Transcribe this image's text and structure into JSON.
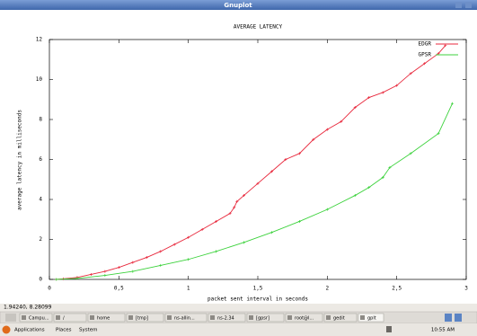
{
  "window": {
    "title": "Gnuplot"
  },
  "status": "1.94240, 8.28099",
  "chart_data": {
    "type": "line",
    "title": "AVERAGE LATENCY",
    "x_label": "packet sent interval in seconds",
    "y_label": "average latency in milliseconds",
    "xlim": [
      0,
      3
    ],
    "ylim": [
      0,
      12
    ],
    "xticks": [
      0,
      {
        "value": 0.5,
        "label": "0,5"
      },
      1,
      {
        "value": 1.5,
        "label": "1,5"
      },
      2,
      {
        "value": 2.5,
        "label": "2,5"
      },
      3
    ],
    "yticks": [
      0,
      2,
      4,
      6,
      8,
      10,
      12
    ],
    "legend": "top-right",
    "series": [
      {
        "name": "EDGR",
        "color": "#e8283c",
        "x": [
          0.05,
          0.1,
          0.2,
          0.3,
          0.4,
          0.5,
          0.6,
          0.7,
          0.8,
          0.9,
          1.0,
          1.1,
          1.2,
          1.3,
          1.33,
          1.35,
          1.4,
          1.5,
          1.6,
          1.7,
          1.8,
          1.9,
          2.0,
          2.1,
          2.2,
          2.3,
          2.4,
          2.5,
          2.6,
          2.7,
          2.8,
          2.85
        ],
        "values": [
          0,
          0.03,
          0.1,
          0.25,
          0.4,
          0.6,
          0.85,
          1.1,
          1.4,
          1.75,
          2.1,
          2.5,
          2.9,
          3.3,
          3.6,
          3.9,
          4.2,
          4.8,
          5.4,
          6.0,
          6.3,
          7.0,
          7.5,
          7.9,
          8.6,
          9.1,
          9.35,
          9.7,
          10.3,
          10.8,
          11.3,
          11.7
        ]
      },
      {
        "name": "GPSR",
        "color": "#3cd23c",
        "x": [
          0.05,
          0.2,
          0.4,
          0.6,
          0.8,
          1.0,
          1.2,
          1.4,
          1.6,
          1.8,
          2.0,
          2.2,
          2.3,
          2.4,
          2.45,
          2.6,
          2.8,
          2.9
        ],
        "values": [
          0,
          0.05,
          0.2,
          0.4,
          0.7,
          1.0,
          1.4,
          1.85,
          2.35,
          2.9,
          3.5,
          4.2,
          4.6,
          5.1,
          5.6,
          6.3,
          7.3,
          8.8
        ]
      }
    ]
  },
  "taskbar": {
    "buttons": [
      "Campu...",
      "/",
      "home",
      "[tmp]",
      "ns-allin...",
      "ns-2.34",
      "[gpsr]",
      "root@l...",
      "gedit",
      "gplt"
    ],
    "menus": [
      "Applications",
      "Places",
      "System"
    ],
    "clock": "10:55 AM"
  }
}
